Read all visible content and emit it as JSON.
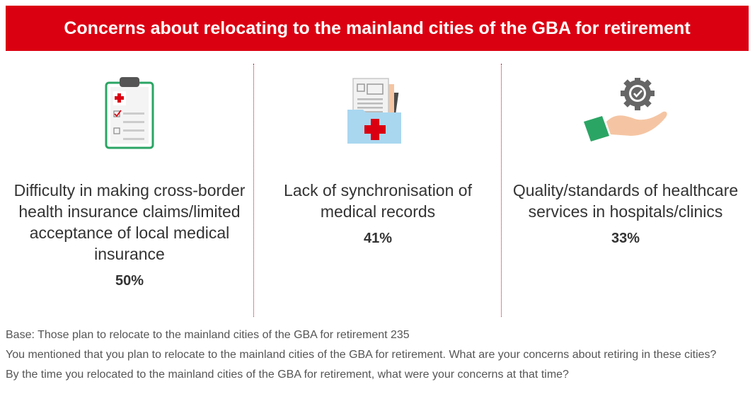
{
  "banner": {
    "title": "Concerns about relocating to the mainland cities of the GBA for retirement",
    "color": "#DB0011"
  },
  "chart_data": {
    "type": "table",
    "title": "Concerns about relocating to the mainland cities of the GBA for retirement",
    "items": [
      {
        "label": "Difficulty in making cross-border health insurance claims/limited acceptance of local medical insurance",
        "value": 50,
        "value_label": "50%",
        "icon": "clipboard-checklist-icon"
      },
      {
        "label": "Lack of synchronisation of medical records",
        "value": 41,
        "value_label": "41%",
        "icon": "medical-folder-icon"
      },
      {
        "label": "Quality/standards of healthcare services in hospitals/clinics",
        "value": 33,
        "value_label": "33%",
        "icon": "hand-quality-badge-icon"
      }
    ]
  },
  "notes": [
    "Base: Those plan to relocate to the mainland cities of the GBA for retirement 235",
    "You mentioned that you plan to relocate to the mainland cities of the GBA for retirement. What are your concerns about retiring in these cities?",
    "By the time you relocated to the mainland cities of the GBA for retirement, what were your concerns at that time?"
  ]
}
